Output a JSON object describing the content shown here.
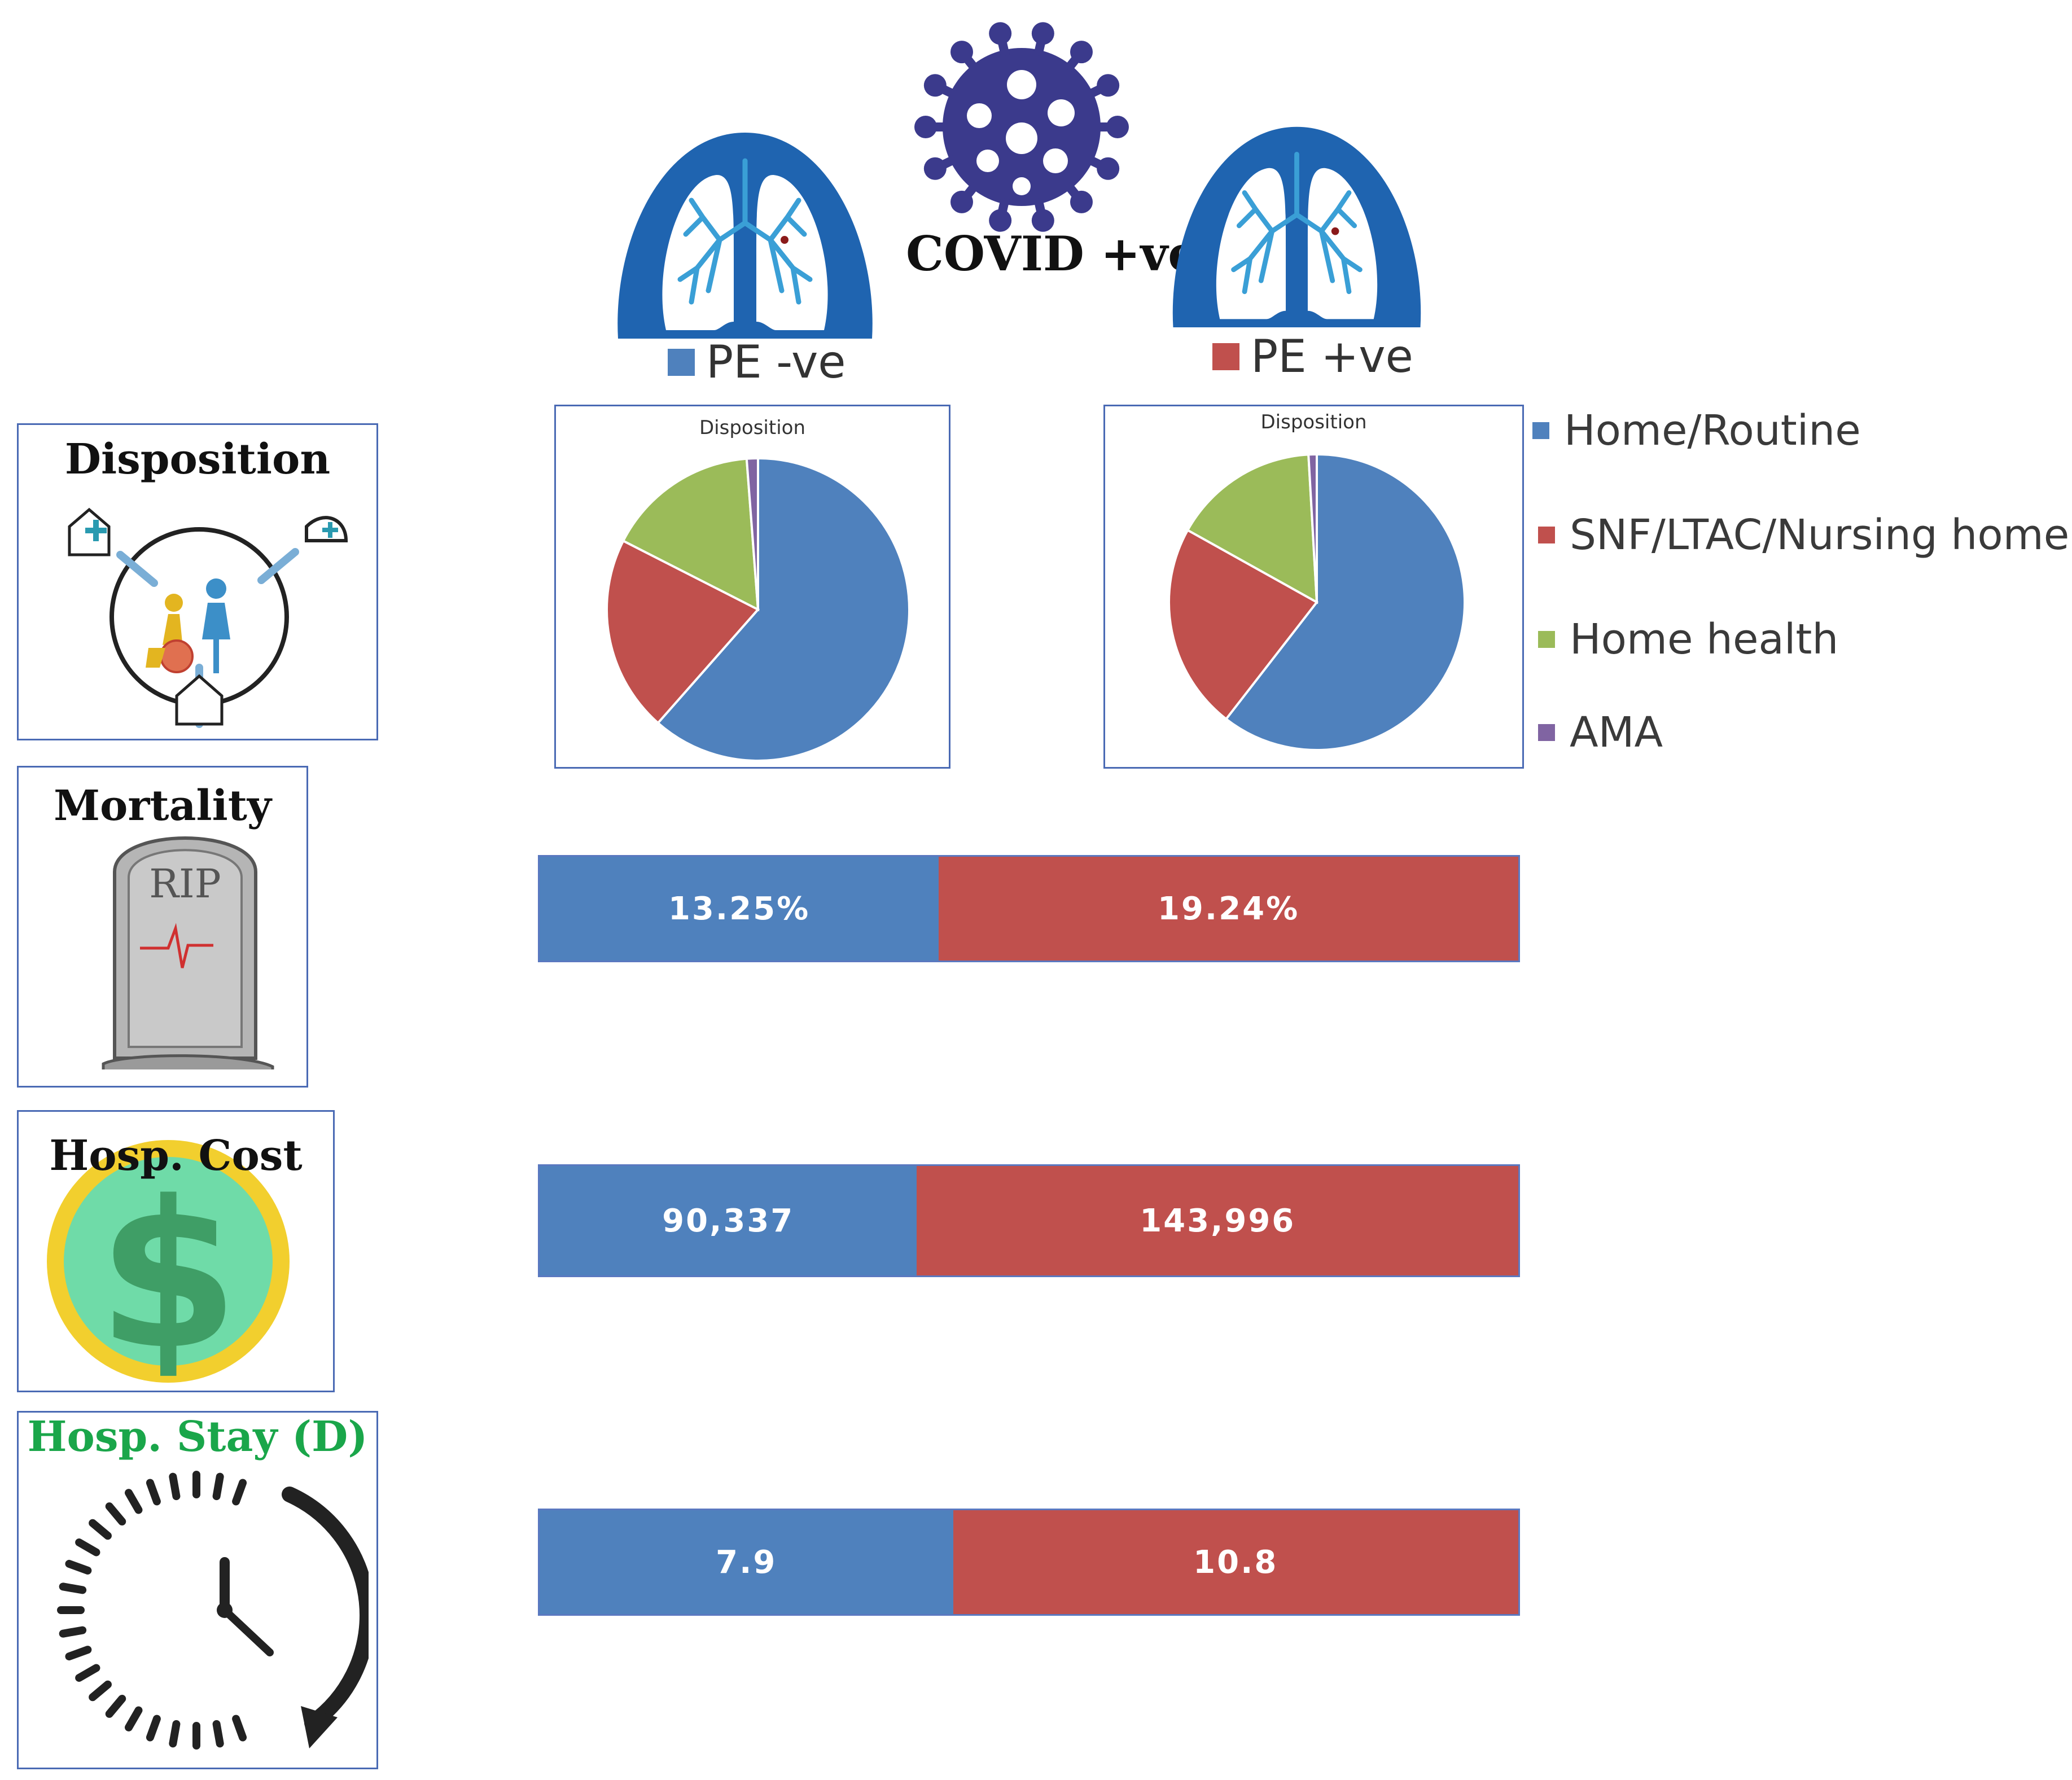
{
  "header": {
    "covid_label": "COVID +ve",
    "group_a": {
      "label": "PE -ve",
      "color": "#4f81bd"
    },
    "group_b": {
      "label": "PE +ve",
      "color": "#c0504d"
    }
  },
  "rows": {
    "disposition": "Disposition",
    "mortality": "Mortality",
    "cost": "Hosp. Cost",
    "stay": "Hosp. Stay (D)",
    "rip_text": "RIP"
  },
  "chart_data": [
    {
      "type": "pie",
      "title": "Disposition",
      "group": "PE -ve",
      "slices": [
        {
          "label": "Home/Routine",
          "value": 61.5,
          "color": "#4f81bd"
        },
        {
          "label": "SNF/LTAC/Nursing home",
          "value": 21,
          "color": "#c0504d"
        },
        {
          "label": "Home health",
          "value": 16.3,
          "color": "#9bbb59"
        },
        {
          "label": "AMA",
          "value": 1.2,
          "color": "#8064a2"
        }
      ]
    },
    {
      "type": "pie",
      "title": "Disposition",
      "group": "PE +ve",
      "slices": [
        {
          "label": "Home/Routine",
          "value": 60.5,
          "color": "#4f81bd"
        },
        {
          "label": "SNF/LTAC/Nursing home",
          "value": 22.6,
          "color": "#c0504d"
        },
        {
          "label": "Home health",
          "value": 16,
          "color": "#9bbb59"
        },
        {
          "label": "AMA",
          "value": 0.9,
          "color": "#8064a2"
        }
      ]
    },
    {
      "type": "bar",
      "title": "Mortality",
      "categories": [
        "PE -ve",
        "PE +ve"
      ],
      "values": [
        13.25,
        19.24
      ],
      "labels": [
        "13.25%",
        "19.24%"
      ]
    },
    {
      "type": "bar",
      "title": "Hosp. Cost",
      "categories": [
        "PE -ve",
        "PE +ve"
      ],
      "values": [
        90337,
        143996
      ],
      "labels": [
        "90,337",
        "143,996"
      ]
    },
    {
      "type": "bar",
      "title": "Hosp. Stay (D)",
      "categories": [
        "PE -ve",
        "PE +ve"
      ],
      "values": [
        7.9,
        10.8
      ],
      "labels": [
        "7.9",
        "10.8"
      ]
    }
  ],
  "legend": [
    {
      "label": "Home/Routine",
      "color": "#4f81bd"
    },
    {
      "label": "SNF/LTAC/Nursing home",
      "color": "#c0504d"
    },
    {
      "label": "Home health",
      "color": "#9bbb59"
    },
    {
      "label": "AMA",
      "color": "#8064a2"
    }
  ]
}
